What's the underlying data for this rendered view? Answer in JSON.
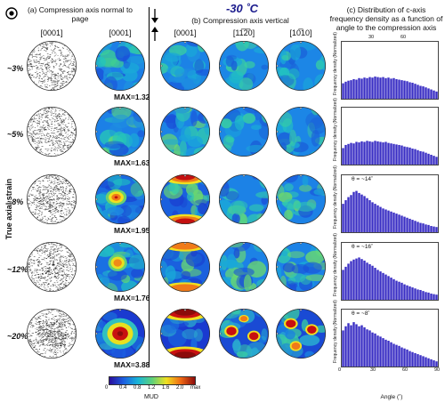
{
  "title": "-30 ˚C",
  "headers": {
    "a": "(a) Compression axis normal to page",
    "b": "(b) Compression axis vertical",
    "c": "(c) Distribution of c-axis frequency density as a function of angle to the compression axis"
  },
  "columns": [
    "[0001]",
    "[0001]",
    "[0001]",
    "[11̅2̅0]",
    "[10̅10]"
  ],
  "y_label": "True axial strain",
  "rows": [
    {
      "strain": "~3%",
      "max": "MAX=1.32",
      "theta": ""
    },
    {
      "strain": "~5%",
      "max": "MAX=1.63",
      "theta": ""
    },
    {
      "strain": "~8%",
      "max": "MAX=1.95",
      "theta": "θ = ~14˚"
    },
    {
      "strain": "~12%",
      "max": "MAX=1.76",
      "theta": "θ = ~16˚"
    },
    {
      "strain": "~20%",
      "max": "MAX=3.88",
      "theta": "θ = ~8˚"
    }
  ],
  "colorbar": {
    "ticks": [
      "0",
      "0.4",
      "0.8",
      "1.2",
      "1.6",
      "2.0",
      "max"
    ],
    "label": "MUD",
    "colors": [
      "#2a0e9c",
      "#1c5fe0",
      "#19b5d8",
      "#5ed17a",
      "#f0e020",
      "#f06a14",
      "#8c0a0a"
    ]
  },
  "histogram": {
    "xlabel": "Angle (˚)",
    "ylabel": "Frequency density (Normalized)",
    "top_ticks": [
      "30",
      "60"
    ],
    "bottom_ticks": [
      "0",
      "30",
      "60",
      "90"
    ],
    "bar_color": "#3a2fc4",
    "series": [
      {
        "values": [
          0.3,
          0.33,
          0.35,
          0.36,
          0.38,
          0.37,
          0.4,
          0.39,
          0.41,
          0.4,
          0.42,
          0.41,
          0.43,
          0.42,
          0.41,
          0.42,
          0.4,
          0.41,
          0.39,
          0.4,
          0.38,
          0.37,
          0.36,
          0.35,
          0.34,
          0.32,
          0.31,
          0.29,
          0.27,
          0.25,
          0.24,
          0.22,
          0.2,
          0.18,
          0.16,
          0.14
        ]
      },
      {
        "values": [
          0.32,
          0.38,
          0.4,
          0.42,
          0.41,
          0.44,
          0.43,
          0.45,
          0.44,
          0.46,
          0.45,
          0.44,
          0.46,
          0.45,
          0.44,
          0.43,
          0.44,
          0.42,
          0.41,
          0.4,
          0.39,
          0.38,
          0.37,
          0.35,
          0.34,
          0.33,
          0.31,
          0.3,
          0.28,
          0.26,
          0.25,
          0.23,
          0.21,
          0.19,
          0.17,
          0.15
        ]
      },
      {
        "values": [
          0.55,
          0.62,
          0.68,
          0.72,
          0.78,
          0.8,
          0.76,
          0.73,
          0.7,
          0.66,
          0.62,
          0.58,
          0.55,
          0.52,
          0.49,
          0.46,
          0.44,
          0.42,
          0.4,
          0.38,
          0.36,
          0.34,
          0.32,
          0.3,
          0.28,
          0.26,
          0.24,
          0.22,
          0.2,
          0.18,
          0.17,
          0.15,
          0.14,
          0.12,
          0.11,
          0.1
        ]
      },
      {
        "values": [
          0.58,
          0.64,
          0.7,
          0.75,
          0.78,
          0.8,
          0.82,
          0.79,
          0.76,
          0.72,
          0.69,
          0.66,
          0.62,
          0.58,
          0.55,
          0.52,
          0.49,
          0.46,
          0.43,
          0.4,
          0.37,
          0.35,
          0.33,
          0.3,
          0.28,
          0.26,
          0.24,
          0.22,
          0.2,
          0.19,
          0.17,
          0.15,
          0.14,
          0.12,
          0.11,
          0.1
        ]
      },
      {
        "values": [
          0.7,
          0.78,
          0.84,
          0.8,
          0.86,
          0.82,
          0.78,
          0.8,
          0.76,
          0.72,
          0.7,
          0.66,
          0.64,
          0.6,
          0.58,
          0.55,
          0.52,
          0.5,
          0.47,
          0.44,
          0.42,
          0.4,
          0.37,
          0.35,
          0.33,
          0.3,
          0.28,
          0.26,
          0.24,
          0.22,
          0.2,
          0.18,
          0.16,
          0.14,
          0.12,
          0.1
        ]
      }
    ]
  }
}
